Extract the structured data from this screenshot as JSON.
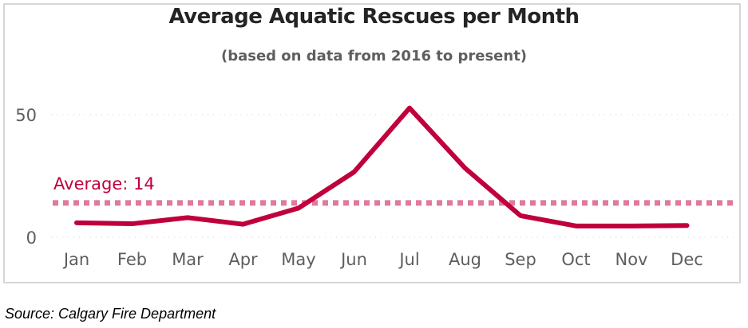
{
  "chart_data": {
    "type": "line",
    "title": "Average Aquatic Rescues per Month",
    "subtitle": "(based on data from 2016 to present)",
    "categories": [
      "Jan",
      "Feb",
      "Mar",
      "Apr",
      "May",
      "Jun",
      "Jul",
      "Aug",
      "Sep",
      "Oct",
      "Nov",
      "Dec"
    ],
    "values": [
      5.9,
      5.5,
      8,
      5.3,
      11.9,
      26.6,
      52.7,
      28.2,
      8.8,
      4.6,
      4.6,
      4.8
    ],
    "yticks": [
      0,
      50
    ],
    "ylim": [
      0,
      50
    ],
    "grid": true,
    "reference_line": {
      "label": "Average: 14",
      "value": 14,
      "color": "#e07a9b"
    },
    "line_color": "#c0003c",
    "xlabel": "",
    "ylabel": ""
  },
  "source": "Source: Calgary Fire Department"
}
